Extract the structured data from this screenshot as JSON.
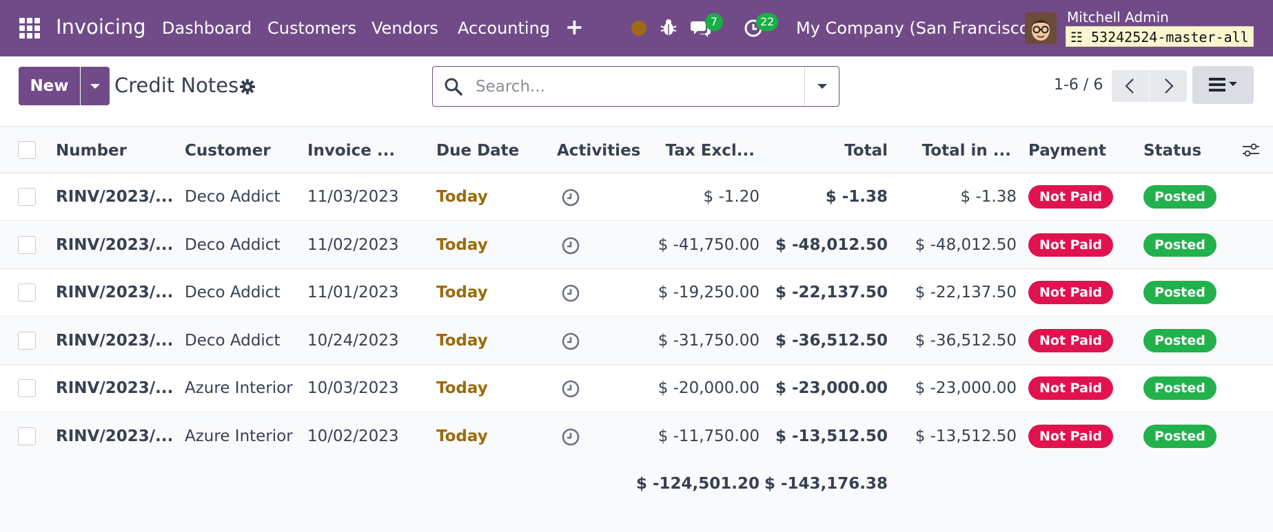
{
  "navbar": {
    "app_name": "Invoicing",
    "menus": [
      "Dashboard",
      "Customers",
      "Vendors",
      "Accounting"
    ],
    "plus_label": "+",
    "chat_count": "7",
    "activity_count": "22",
    "company": "My Company (San Francisco)",
    "user_name": "Mitchell Admin",
    "db_name": "53242524-master-all",
    "colors": {
      "bar": "#714B88",
      "badge": "#1AAE47",
      "status_dot": "#A0691A"
    }
  },
  "control": {
    "new_label": "New",
    "title": "Credit Notes",
    "search_placeholder": "Search...",
    "pager": "1-6 / 6"
  },
  "table": {
    "headers": {
      "number": "Number",
      "customer": "Customer",
      "invoice_date": "Invoice ...",
      "due_date": "Due Date",
      "activities": "Activities",
      "tax_excl": "Tax Excl...",
      "total": "Total",
      "total_in": "Total in ...",
      "payment": "Payment",
      "status": "Status"
    },
    "rows": [
      {
        "number": "RINV/2023/...",
        "customer": "Deco Addict",
        "invoice_date": "11/03/2023",
        "due_date": "Today",
        "tax_excl": "$ -1.20",
        "total": "$ -1.38",
        "total_in": "$ -1.38",
        "payment": "Not Paid",
        "status": "Posted"
      },
      {
        "number": "RINV/2023/...",
        "customer": "Deco Addict",
        "invoice_date": "11/02/2023",
        "due_date": "Today",
        "tax_excl": "$ -41,750.00",
        "total": "$ -48,012.50",
        "total_in": "$ -48,012.50",
        "payment": "Not Paid",
        "status": "Posted"
      },
      {
        "number": "RINV/2023/...",
        "customer": "Deco Addict",
        "invoice_date": "11/01/2023",
        "due_date": "Today",
        "tax_excl": "$ -19,250.00",
        "total": "$ -22,137.50",
        "total_in": "$ -22,137.50",
        "payment": "Not Paid",
        "status": "Posted"
      },
      {
        "number": "RINV/2023/...",
        "customer": "Deco Addict",
        "invoice_date": "10/24/2023",
        "due_date": "Today",
        "tax_excl": "$ -31,750.00",
        "total": "$ -36,512.50",
        "total_in": "$ -36,512.50",
        "payment": "Not Paid",
        "status": "Posted"
      },
      {
        "number": "RINV/2023/...",
        "customer": "Azure Interior",
        "invoice_date": "10/03/2023",
        "due_date": "Today",
        "tax_excl": "$ -20,000.00",
        "total": "$ -23,000.00",
        "total_in": "$ -23,000.00",
        "payment": "Not Paid",
        "status": "Posted"
      },
      {
        "number": "RINV/2023/...",
        "customer": "Azure Interior",
        "invoice_date": "10/02/2023",
        "due_date": "Today",
        "tax_excl": "$ -11,750.00",
        "total": "$ -13,512.50",
        "total_in": "$ -13,512.50",
        "payment": "Not Paid",
        "status": "Posted"
      }
    ],
    "totals": {
      "tax_excl": "$ -124,501.20",
      "total": "$ -143,176.38"
    },
    "colors": {
      "not_paid": "#E0124F",
      "posted": "#22B14C",
      "today": "#9B6B0B"
    }
  }
}
